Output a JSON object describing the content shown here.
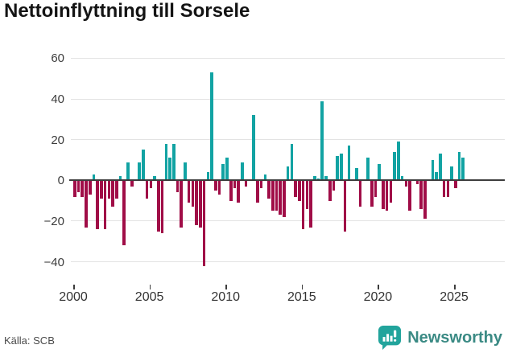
{
  "title": "Nettoinflyttning till Sorsele",
  "footer": {
    "source": "Källa: SCB",
    "brand": "Newsworthy"
  },
  "chart_data": {
    "type": "bar",
    "title": "Nettoinflyttning till Sorsele",
    "frequency": "quarterly",
    "x_start": "2000 Q1",
    "x_end": "2025 Q3",
    "values": [
      -8,
      -6,
      -8,
      -23,
      -7,
      3,
      -24,
      -9,
      -24,
      -9,
      -13,
      -9,
      2,
      -32,
      9,
      -3,
      0,
      9,
      15,
      -9,
      -4,
      2,
      -25,
      -26,
      18,
      11,
      18,
      -6,
      -23,
      9,
      -11,
      -13,
      -22,
      -23,
      -42,
      4,
      53,
      -5,
      -7,
      8,
      11,
      -10,
      -4,
      -11,
      9,
      -3,
      0,
      32,
      -11,
      -4,
      3,
      -9,
      -15,
      -15,
      -17,
      -18,
      7,
      18,
      -8,
      -10,
      -24,
      -14,
      -23,
      2,
      1,
      39,
      2,
      -10,
      -5,
      12,
      13,
      -25,
      17,
      0,
      6,
      -13,
      0,
      11,
      -13,
      -8,
      8,
      -14,
      -15,
      -11,
      14,
      19,
      2,
      -3,
      -15,
      0,
      -2,
      -14,
      -19,
      0,
      10,
      4,
      13,
      -8,
      -8,
      7,
      -4,
      14,
      11
    ],
    "ylim": [
      -45,
      62
    ],
    "yticks": [
      60,
      40,
      20,
      0,
      -20,
      -40
    ],
    "ytick_labels": [
      "60",
      "40",
      "20",
      "0",
      "−20",
      "−40"
    ],
    "xticks": [
      2000,
      2005,
      2010,
      2015,
      2020,
      2025
    ],
    "xtick_labels": [
      "2000",
      "2005",
      "2010",
      "2015",
      "2020",
      "2025"
    ],
    "grid": true,
    "legend": false,
    "colors": {
      "positive": "#12a3a3",
      "negative": "#a00d47",
      "axis": "#3d3d3d",
      "grid": "#e3e3e3",
      "brand_icon": "#22a49c",
      "brand_text": "#3a8a84"
    }
  }
}
